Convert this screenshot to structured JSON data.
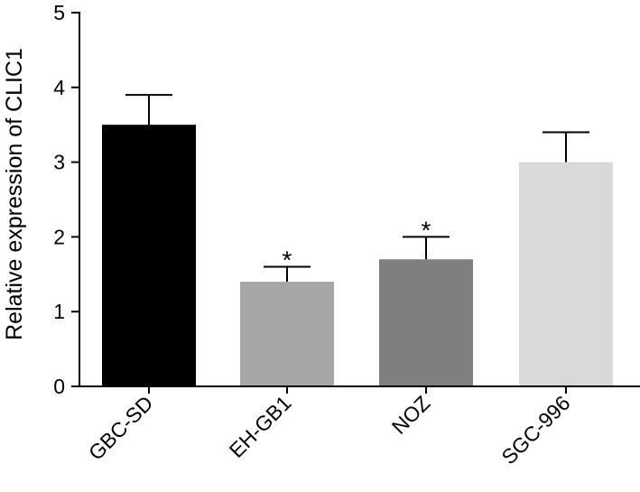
{
  "chart_data": {
    "type": "bar",
    "title": "",
    "xlabel": "",
    "ylabel": "Relative expression of CLIC1",
    "categories": [
      "GBC-SD",
      "EH-GB1",
      "NOZ",
      "SGC-996"
    ],
    "values": [
      3.5,
      1.4,
      1.7,
      3.0
    ],
    "error_upper": [
      3.9,
      1.6,
      2.0,
      3.4
    ],
    "significance": [
      "",
      "*",
      "*",
      ""
    ],
    "bar_colors": [
      "#000000",
      "#a6a6a6",
      "#7f7f7f",
      "#d9d9d9"
    ],
    "ylim": [
      0,
      5
    ],
    "yticks": [
      "0",
      "1",
      "2",
      "3",
      "4",
      "5"
    ],
    "grid": false,
    "legend": "none"
  }
}
